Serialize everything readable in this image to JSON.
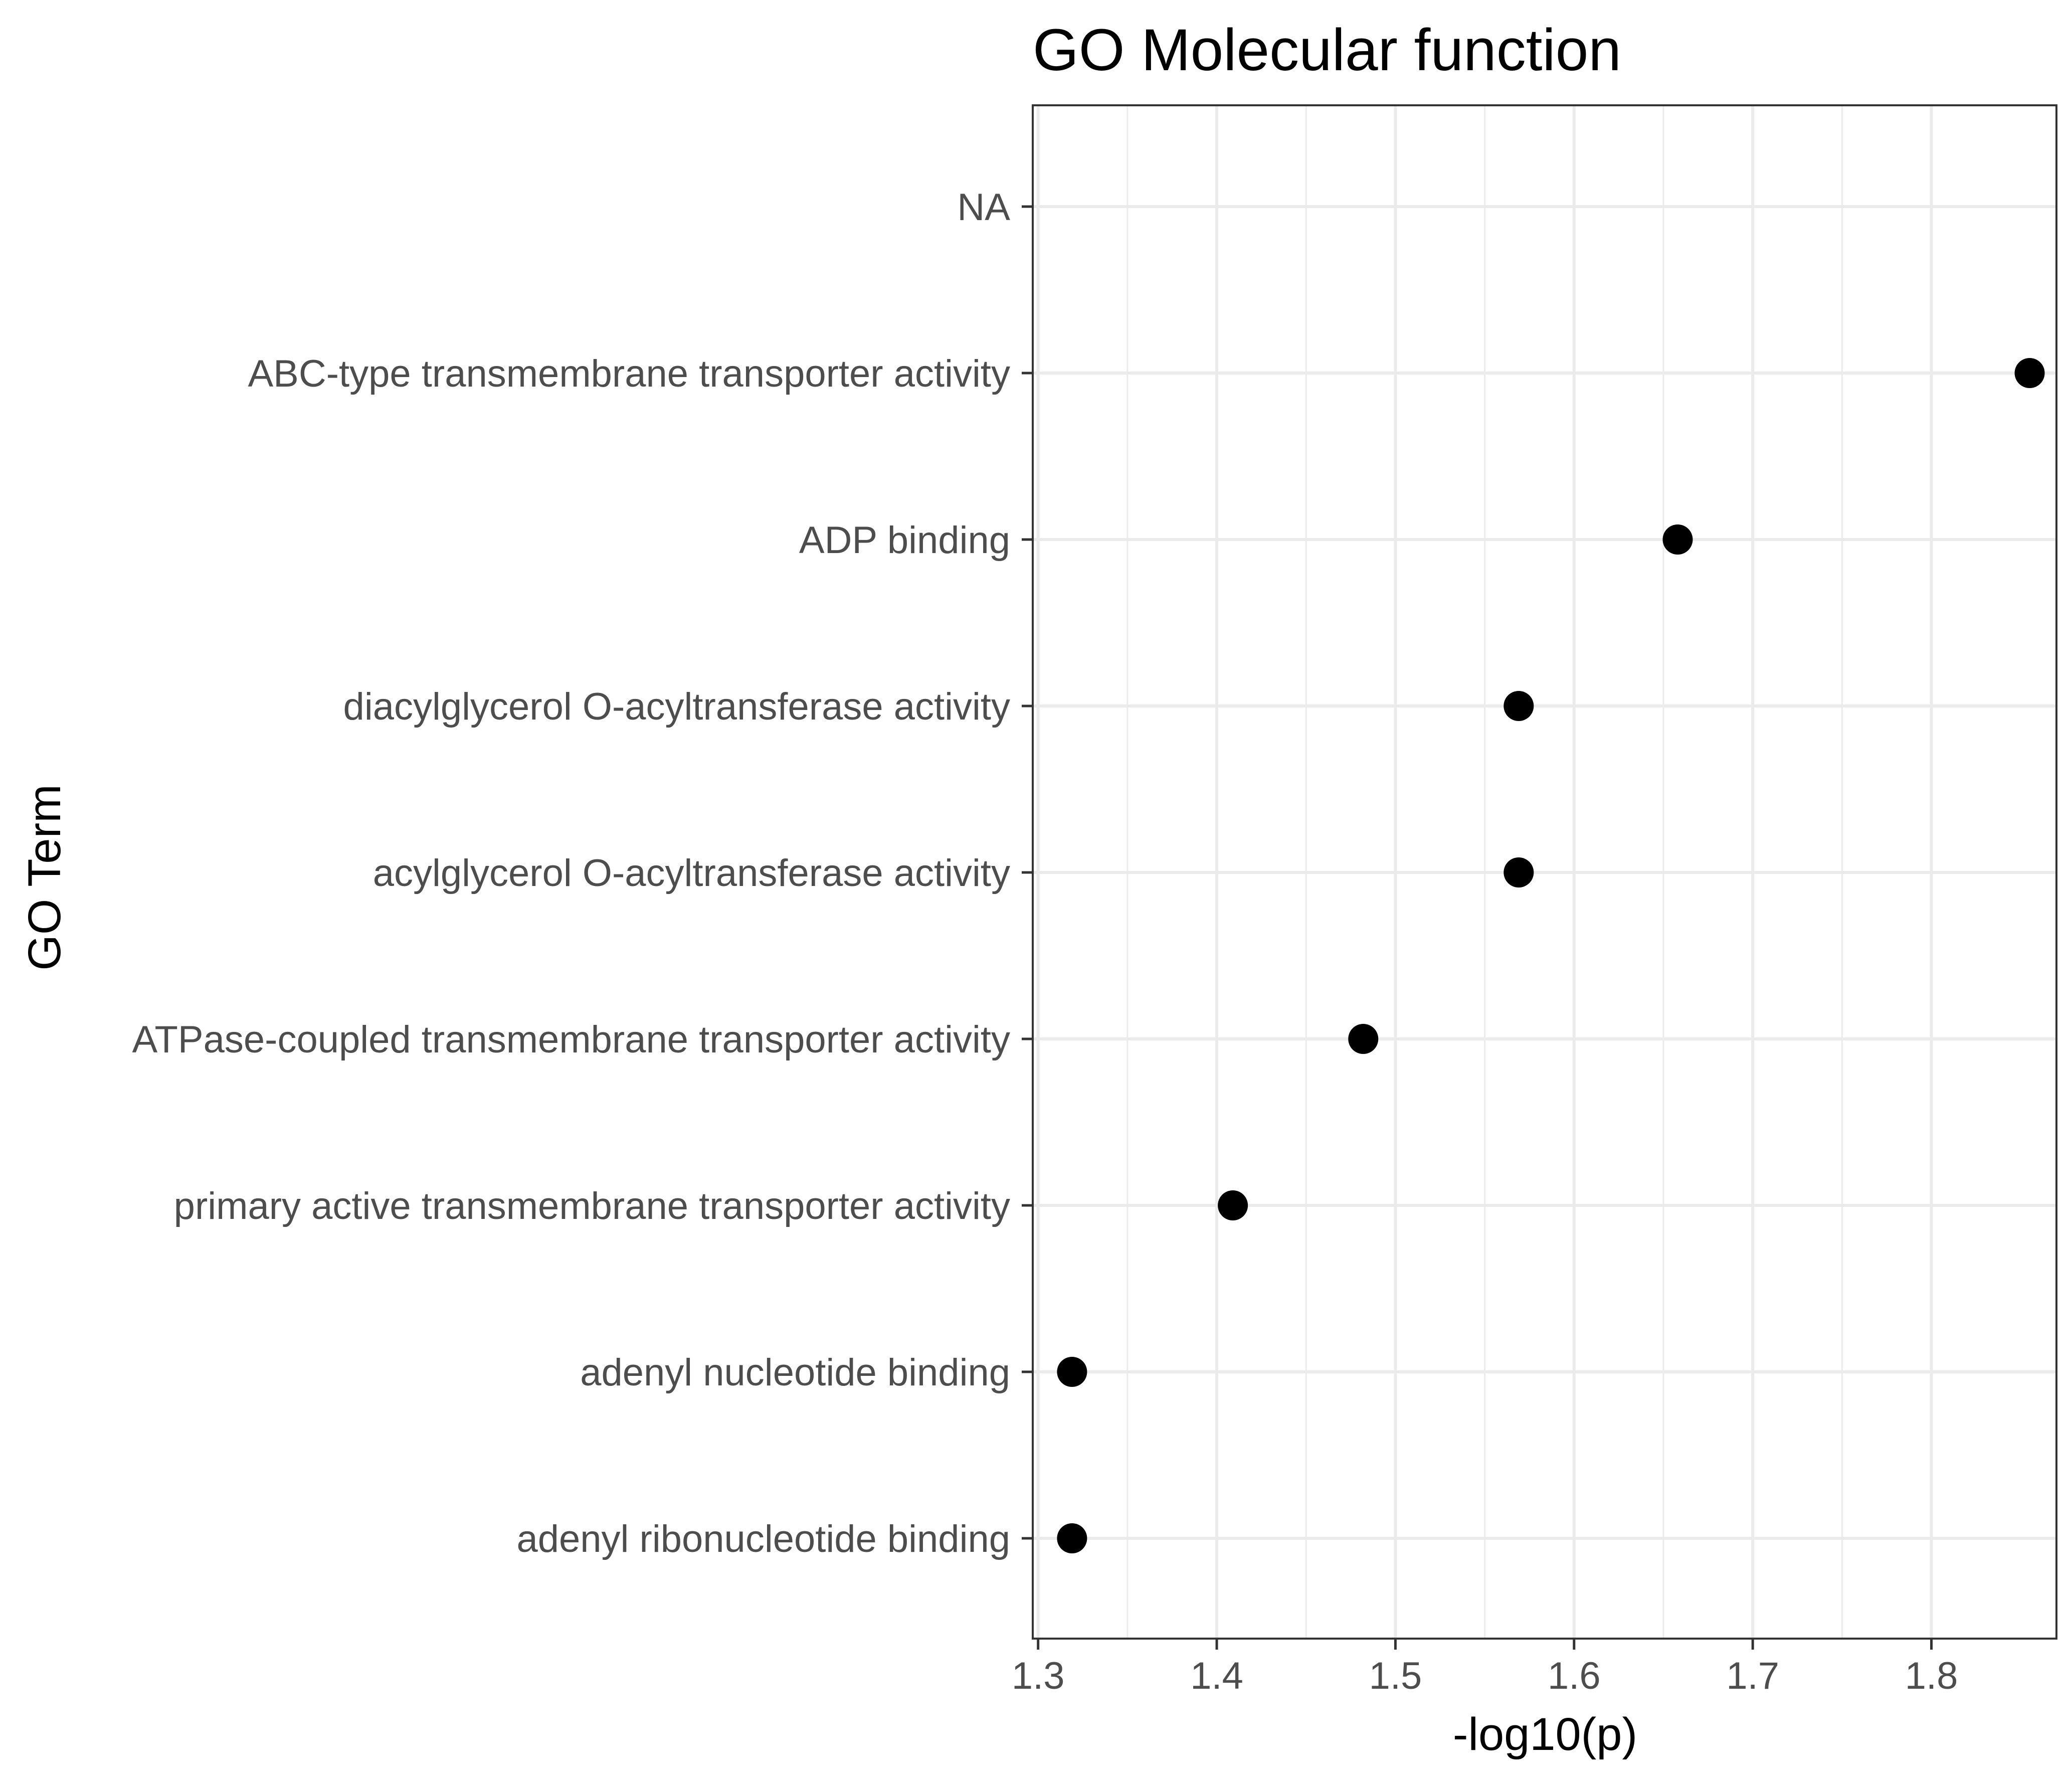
{
  "chart_data": {
    "type": "scatter",
    "title": "GO Molecular function",
    "xlabel": "-log10(p)",
    "ylabel": "GO Term",
    "xlim": [
      1.297,
      1.87
    ],
    "x_ticks": [
      "1.3",
      "1.4",
      "1.5",
      "1.6",
      "1.7",
      "1.8"
    ],
    "grid": true,
    "categories": [
      "NA",
      "ABC-type transmembrane transporter activity",
      "ADP binding",
      "diacylglycerol O-acyltransferase activity",
      "acylglycerol O-acyltransferase activity",
      "ATPase-coupled transmembrane transporter activity",
      "primary active transmembrane transporter activity",
      "adenyl nucleotide binding",
      "adenyl ribonucleotide binding"
    ],
    "values": [
      null,
      1.855,
      1.658,
      1.569,
      1.569,
      1.482,
      1.409,
      1.319,
      1.319
    ],
    "point_color": "#000000"
  }
}
